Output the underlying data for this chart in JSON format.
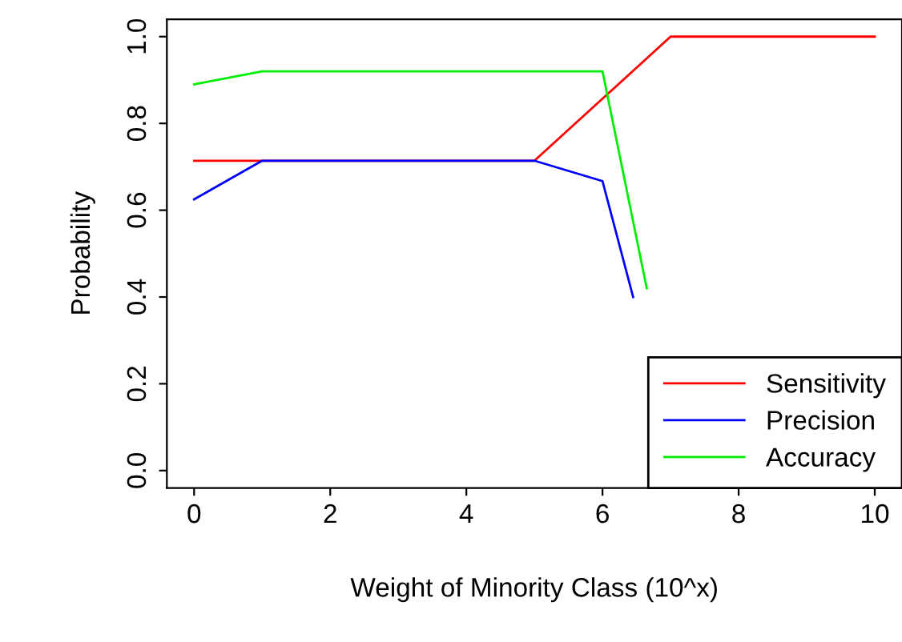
{
  "chart_data": {
    "type": "line",
    "xlabel": "Weight of Minority Class (10^x)",
    "ylabel": "Probability",
    "x": [
      0,
      1,
      2,
      3,
      4,
      5,
      6,
      7,
      8,
      9,
      10
    ],
    "series": [
      {
        "name": "Sensitivity",
        "color": "#ff0000",
        "values": [
          0.714,
          0.714,
          0.714,
          0.714,
          0.714,
          0.714,
          0.857,
          1.0,
          1.0,
          1.0,
          1.0
        ]
      },
      {
        "name": "Precision",
        "color": "#0000ff",
        "x": [
          0,
          1,
          2,
          3,
          4,
          5,
          6,
          6.45
        ],
        "values": [
          0.625,
          0.714,
          0.714,
          0.714,
          0.714,
          0.714,
          0.667,
          0.4
        ]
      },
      {
        "name": "Accuracy",
        "color": "#00ee00",
        "x": [
          0,
          1,
          2,
          3,
          4,
          5,
          6,
          6.65
        ],
        "values": [
          0.89,
          0.92,
          0.92,
          0.92,
          0.92,
          0.92,
          0.92,
          0.42
        ]
      }
    ],
    "xlim": [
      -0.4,
      10.4
    ],
    "ylim": [
      -0.04,
      1.04
    ],
    "xticks": [
      0,
      2,
      4,
      6,
      8,
      10
    ],
    "yticks": [
      {
        "value": 0,
        "label": "0.0"
      },
      0.2,
      0.4,
      0.6,
      0.8,
      {
        "value": 1,
        "label": "1.0"
      }
    ],
    "grid": false,
    "legend": "bottom right",
    "marker": "none",
    "line_style": "solid"
  }
}
